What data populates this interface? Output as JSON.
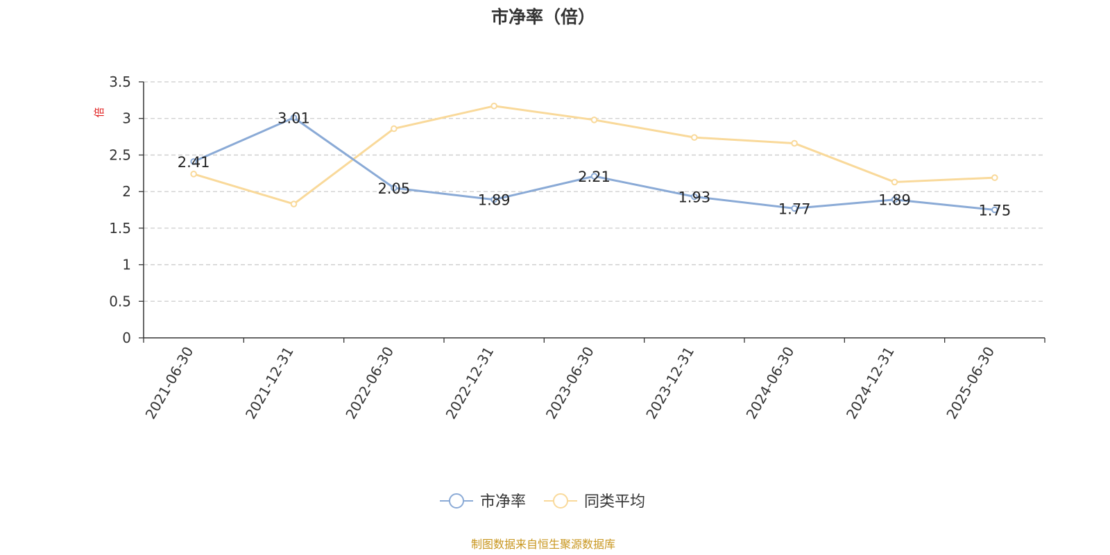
{
  "chart_data": {
    "type": "line",
    "title": "市净率（倍）",
    "ylabel": "倍",
    "categories": [
      "2021-06-30",
      "2021-12-31",
      "2022-06-30",
      "2022-12-31",
      "2023-06-30",
      "2023-12-31",
      "2024-06-30",
      "2024-12-31",
      "2025-06-30"
    ],
    "ylim": [
      0,
      3.5
    ],
    "yticks": [
      "0",
      "0.5",
      "1",
      "1.5",
      "2",
      "2.5",
      "3",
      "3.5"
    ],
    "grid": true,
    "legend_position": "bottom-center",
    "series": [
      {
        "name": "市净率",
        "color": "#8aaad6",
        "values": [
          2.41,
          3.01,
          2.05,
          1.89,
          2.21,
          1.93,
          1.77,
          1.89,
          1.75
        ],
        "labels": [
          "2.41",
          "3.01",
          "2.05",
          "1.89",
          "2.21",
          "1.93",
          "1.77",
          "1.89",
          "1.75"
        ]
      },
      {
        "name": "同类平均",
        "color": "#f9d99a",
        "values": [
          2.24,
          1.83,
          2.86,
          3.17,
          2.98,
          2.74,
          2.66,
          2.13,
          2.19
        ]
      }
    ],
    "source": "制图数据来自恒生聚源数据库"
  }
}
